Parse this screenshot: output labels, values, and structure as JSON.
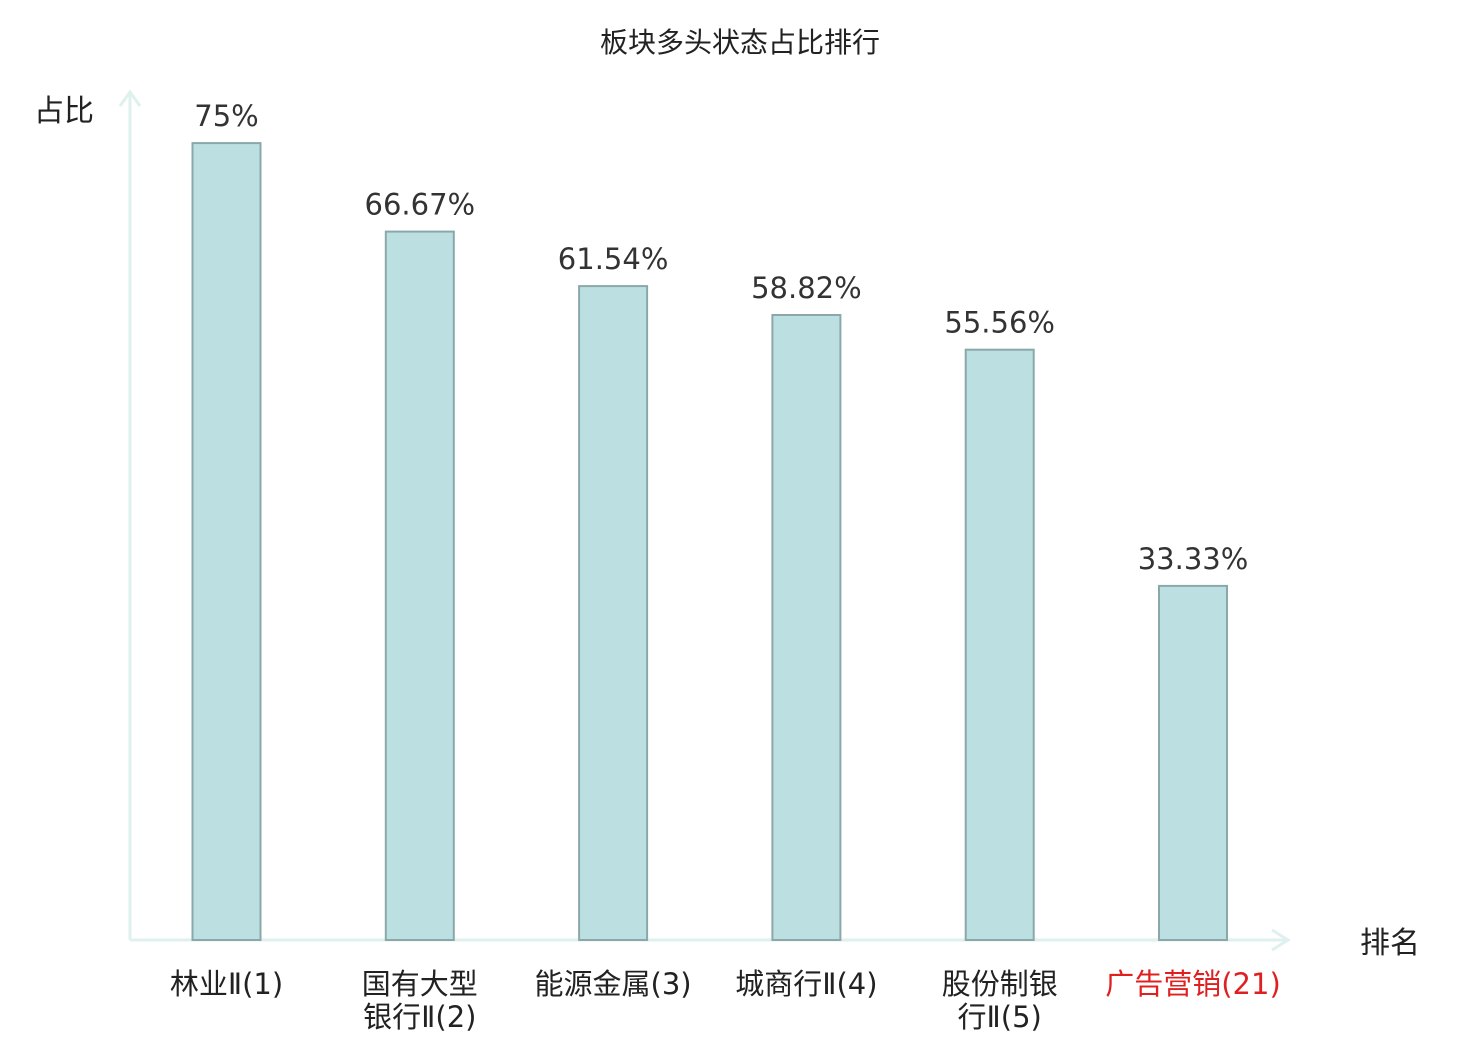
{
  "chart_data": {
    "type": "bar",
    "title": "板块多头状态占比排行",
    "xlabel": "排名",
    "ylabel": "占比",
    "categories": [
      "林业Ⅱ(1)",
      "国有大型银行Ⅱ(2)",
      "能源金属(3)",
      "城商行Ⅱ(4)",
      "股份制银行Ⅱ(5)",
      "广告营销(21)"
    ],
    "category_lines": [
      [
        "林业Ⅱ(1)"
      ],
      [
        "国有大型",
        "银行Ⅱ(2)"
      ],
      [
        "能源金属(3)"
      ],
      [
        "城商行Ⅱ(4)"
      ],
      [
        "股份制银",
        "行Ⅱ(5)"
      ],
      [
        "广告营销(21)"
      ]
    ],
    "values": [
      75,
      66.67,
      61.54,
      58.82,
      55.56,
      33.33
    ],
    "value_labels": [
      "75%",
      "66.67%",
      "61.54%",
      "58.82%",
      "55.56%",
      "33.33%"
    ],
    "highlight_index": 5,
    "ylim": [
      0,
      80
    ],
    "grid": false,
    "legend": "none"
  },
  "colors": {
    "bar_fill": "#bce0e2",
    "bar_stroke": "#8aa8aa",
    "axis": "#dff1ef",
    "highlight_text": "#e02020",
    "text": "#222222"
  }
}
